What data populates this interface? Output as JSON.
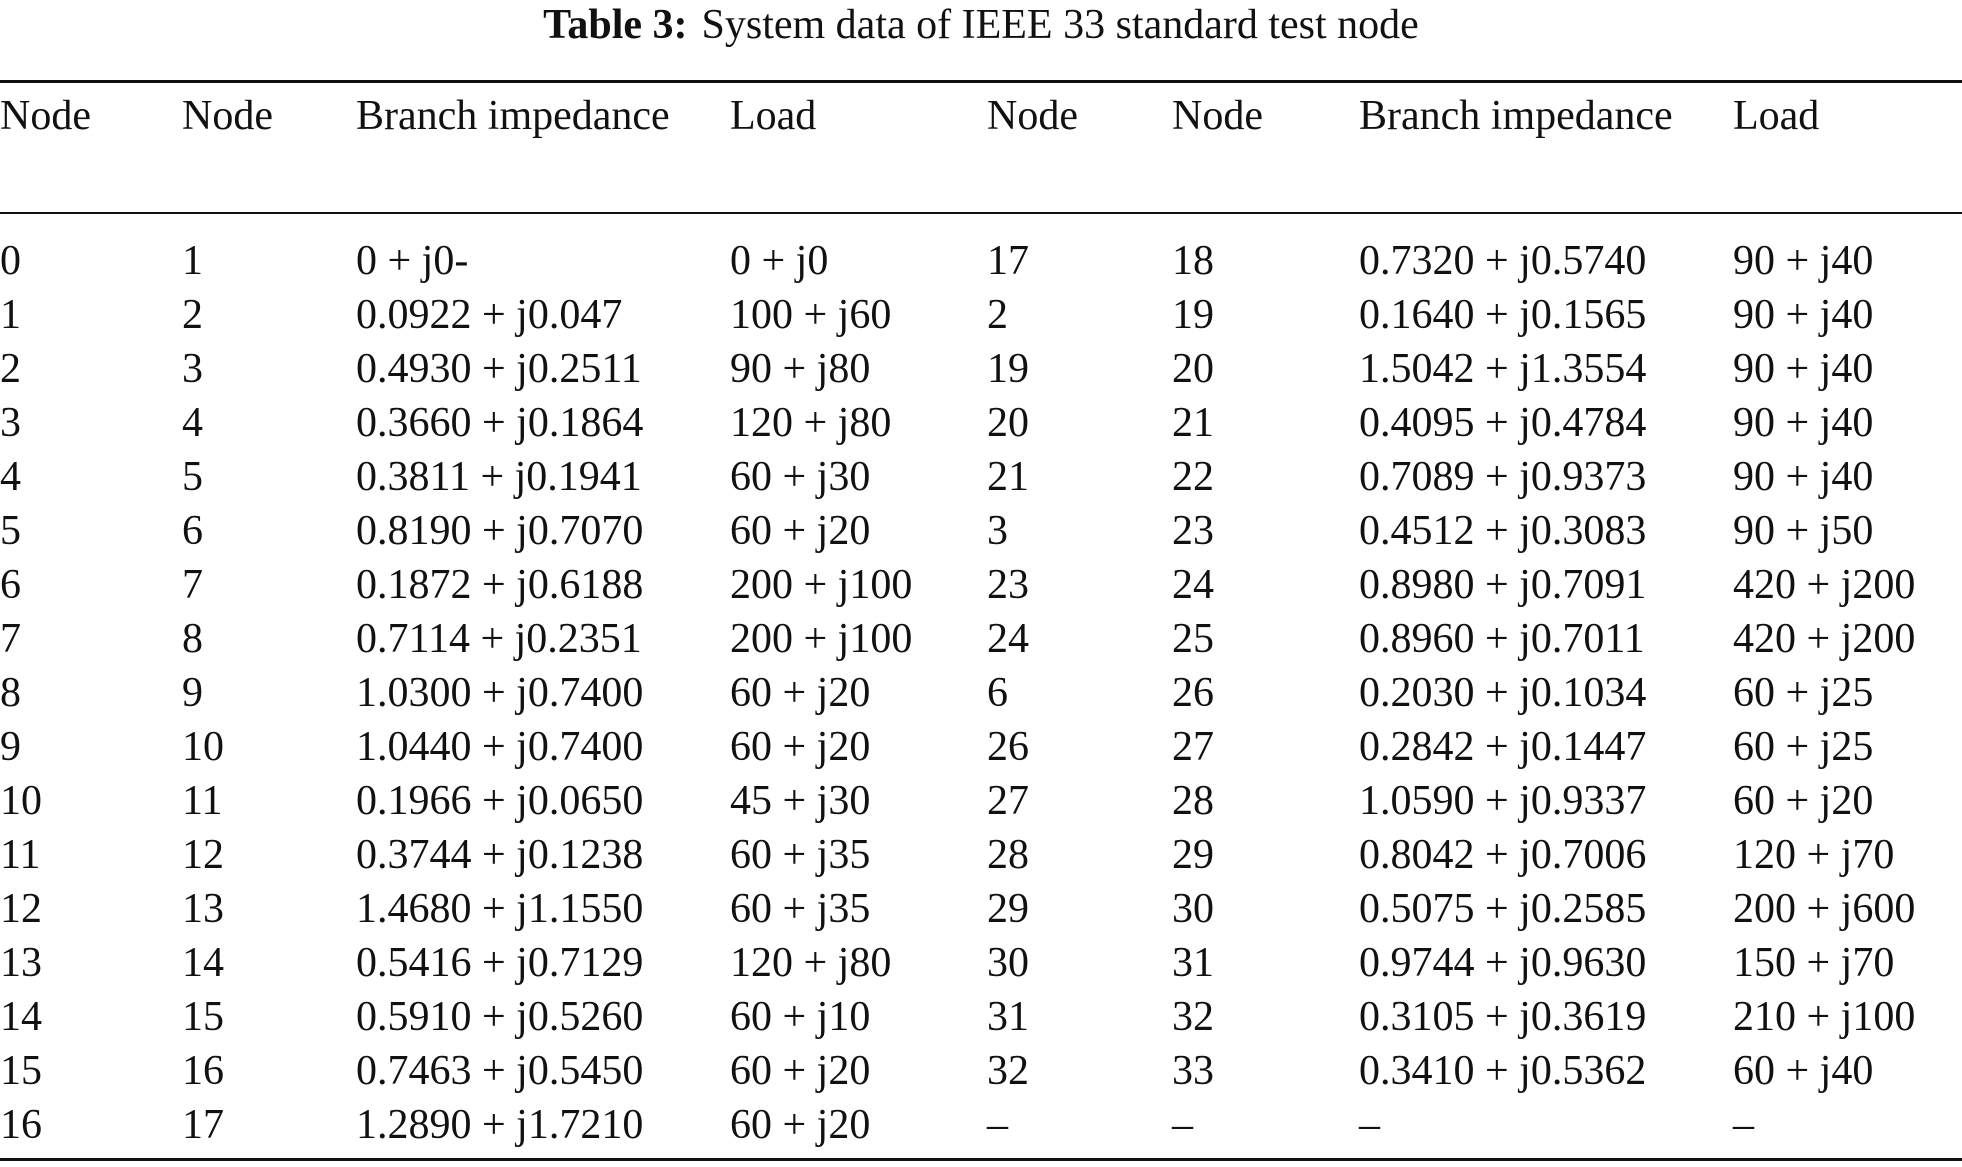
{
  "caption": {
    "label": "Table 3:",
    "text": "System data of IEEE 33 standard test node"
  },
  "table": {
    "headers": [
      "Node",
      "Node",
      "Branch impedance",
      "Load",
      "Node",
      "Node",
      "Branch impedance",
      "Load"
    ],
    "rows": [
      [
        "0",
        "1",
        "0 + j0-",
        "0 + j0",
        "17",
        "18",
        "0.7320 + j0.5740",
        "90 + j40"
      ],
      [
        "1",
        "2",
        "0.0922 + j0.047",
        "100 + j60",
        "2",
        "19",
        "0.1640 + j0.1565",
        "90 + j40"
      ],
      [
        "2",
        "3",
        "0.4930 + j0.2511",
        "90 + j80",
        "19",
        "20",
        "1.5042 + j1.3554",
        "90 + j40"
      ],
      [
        "3",
        "4",
        "0.3660 + j0.1864",
        "120 + j80",
        "20",
        "21",
        "0.4095 + j0.4784",
        "90 + j40"
      ],
      [
        "4",
        "5",
        "0.3811 + j0.1941",
        "60 + j30",
        "21",
        "22",
        "0.7089 + j0.9373",
        "90 + j40"
      ],
      [
        "5",
        "6",
        "0.8190 + j0.7070",
        "60 + j20",
        "3",
        "23",
        "0.4512 + j0.3083",
        "90 + j50"
      ],
      [
        "6",
        "7",
        "0.1872 + j0.6188",
        "200 + j100",
        "23",
        "24",
        "0.8980 + j0.7091",
        "420 + j200"
      ],
      [
        "7",
        "8",
        "0.7114 + j0.2351",
        "200 + j100",
        "24",
        "25",
        "0.8960 + j0.7011",
        "420 + j200"
      ],
      [
        "8",
        "9",
        "1.0300 + j0.7400",
        "60 + j20",
        "6",
        "26",
        "0.2030 + j0.1034",
        "60 + j25"
      ],
      [
        "9",
        "10",
        "1.0440 + j0.7400",
        "60 + j20",
        "26",
        "27",
        "0.2842 + j0.1447",
        "60 + j25"
      ],
      [
        "10",
        "11",
        "0.1966 + j0.0650",
        "45 + j30",
        "27",
        "28",
        "1.0590 + j0.9337",
        "60 + j20"
      ],
      [
        "11",
        "12",
        "0.3744 + j0.1238",
        "60 + j35",
        "28",
        "29",
        "0.8042 + j0.7006",
        "120 + j70"
      ],
      [
        "12",
        "13",
        "1.4680 + j1.1550",
        "60 + j35",
        "29",
        "30",
        "0.5075 + j0.2585",
        "200 + j600"
      ],
      [
        "13",
        "14",
        "0.5416 + j0.7129",
        "120 + j80",
        "30",
        "31",
        "0.9744 + j0.9630",
        "150 + j70"
      ],
      [
        "14",
        "15",
        "0.5910 + j0.5260",
        "60 + j10",
        "31",
        "32",
        "0.3105 + j0.3619",
        "210 + j100"
      ],
      [
        "15",
        "16",
        "0.7463 + j0.5450",
        "60 + j20",
        "32",
        "33",
        "0.3410 + j0.5362",
        "60 + j40"
      ],
      [
        "16",
        "17",
        "1.2890 + j1.7210",
        "60 + j20",
        "–",
        "–",
        "–",
        "–"
      ]
    ]
  }
}
